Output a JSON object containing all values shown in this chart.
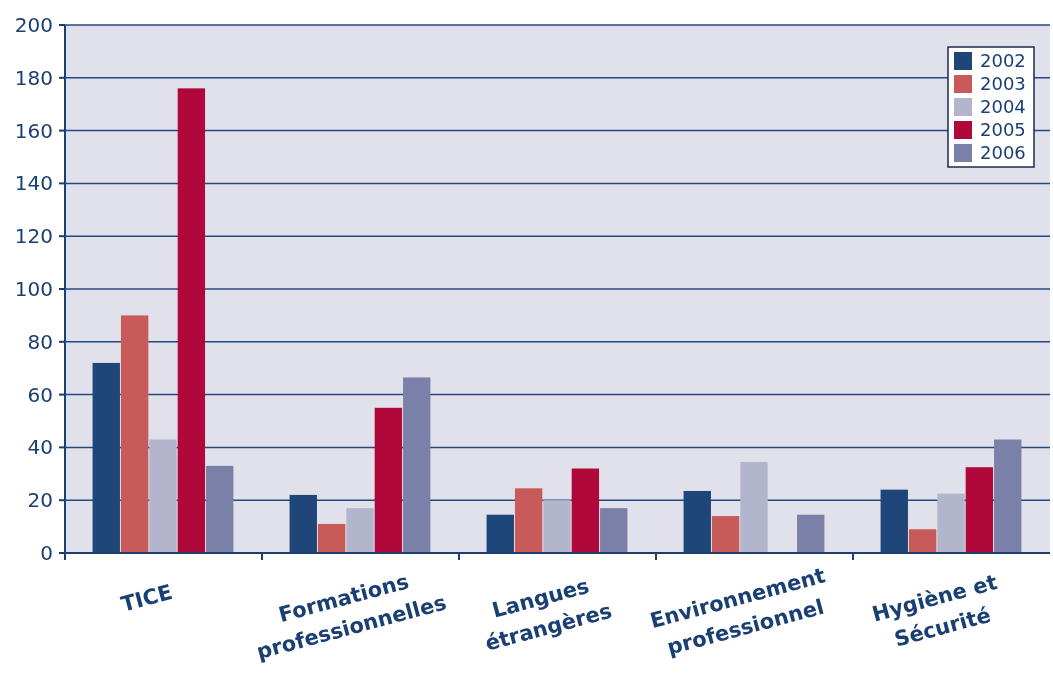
{
  "chart_data": {
    "type": "bar",
    "categories": [
      "TICE",
      "Formations\nprofessionnelles",
      "Langues\nétrangères",
      "Environnement\nprofessionnel",
      "Hygiène et\nSécurité"
    ],
    "series": [
      {
        "name": "2002",
        "color": "#1e4678",
        "values": [
          72,
          22,
          14.5,
          23.5,
          24
        ]
      },
      {
        "name": "2003",
        "color": "#c85a5a",
        "values": [
          90,
          11,
          24.5,
          14,
          9
        ]
      },
      {
        "name": "2004",
        "color": "#b3b5cc",
        "values": [
          43,
          17,
          20,
          34.5,
          22.5
        ]
      },
      {
        "name": "2005",
        "color": "#b0083a",
        "values": [
          176,
          55,
          32,
          null,
          32.5
        ]
      },
      {
        "name": "2006",
        "color": "#7a80a8",
        "values": [
          33,
          66.5,
          17,
          14.5,
          43
        ]
      }
    ],
    "ylim": [
      0,
      200
    ],
    "yticks": [
      0,
      20,
      40,
      60,
      80,
      100,
      120,
      140,
      160,
      180,
      200
    ],
    "grid": "y",
    "legend": "top right"
  }
}
